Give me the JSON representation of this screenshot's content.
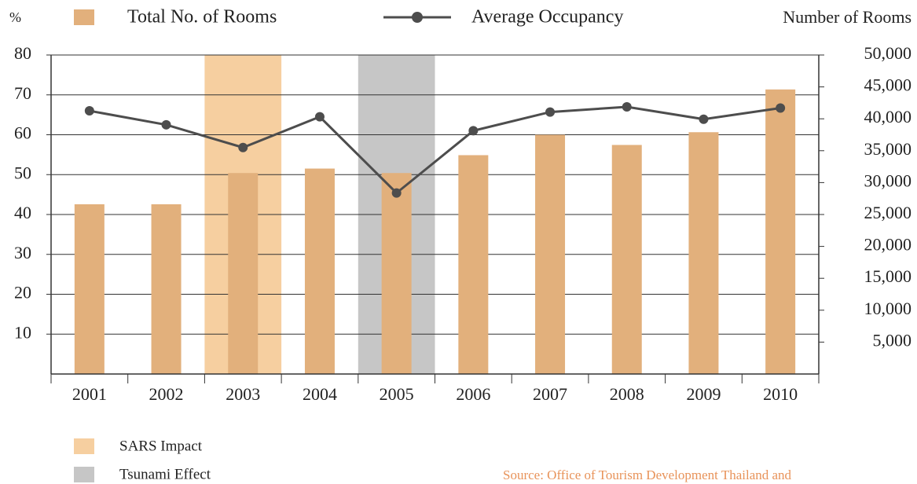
{
  "chart_data": {
    "type": "bar",
    "ylabel": "%",
    "y2label": "Number of Rooms",
    "categories": [
      "2001",
      "2002",
      "2003",
      "2004",
      "2005",
      "2006",
      "2007",
      "2008",
      "2009",
      "2010"
    ],
    "series": [
      {
        "name": "Total No. of Rooms",
        "type": "bar",
        "axis": "y2",
        "color": "#e2b07c",
        "values": [
          26600,
          26600,
          31500,
          32200,
          31500,
          34300,
          37500,
          35900,
          37900,
          44600
        ]
      },
      {
        "name": "Average Occupancy",
        "type": "line",
        "axis": "y",
        "color": "#4d4d4d",
        "values": [
          66,
          62.5,
          56.8,
          64.5,
          45.4,
          61,
          65.7,
          67,
          63.9,
          66.7
        ]
      }
    ],
    "ylim": [
      0,
      80
    ],
    "yticks": [
      10,
      20,
      30,
      40,
      50,
      60,
      70,
      80
    ],
    "y2lim": [
      0,
      50000
    ],
    "y2ticks": [
      {
        "value": 5000,
        "label": "5,000"
      },
      {
        "value": 10000,
        "label": "10,000"
      },
      {
        "value": 15000,
        "label": "15,000"
      },
      {
        "value": 20000,
        "label": "20,000"
      },
      {
        "value": 25000,
        "label": "25,000"
      },
      {
        "value": 30000,
        "label": "30,000"
      },
      {
        "value": 35000,
        "label": "35,000"
      },
      {
        "value": 40000,
        "label": "40,000"
      },
      {
        "value": 45000,
        "label": "45,000"
      },
      {
        "value": 50000,
        "label": "50,000"
      }
    ],
    "grid": true,
    "highlights": [
      {
        "label": "SARS Impact",
        "category": "2003",
        "color": "#f6cfa0"
      },
      {
        "label": "Tsunami Effect",
        "category": "2005",
        "color": "#c6c6c6"
      }
    ],
    "source": "Source: Office of Tourism Development Thailand and"
  }
}
